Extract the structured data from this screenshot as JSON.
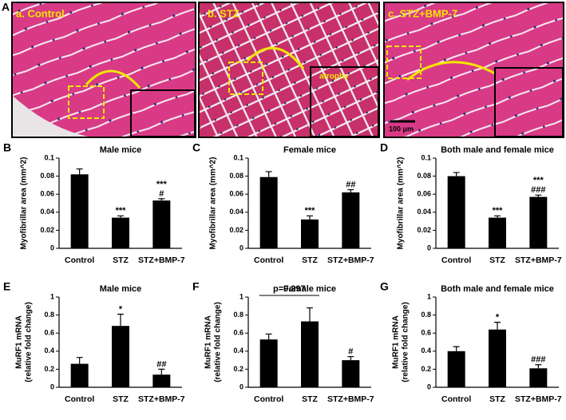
{
  "panels": {
    "figure_letter": "A",
    "image_labels": [
      "a. Control",
      "b. STZ",
      "c. STZ+BMP-7"
    ],
    "atrophy_label": "atrophy",
    "scale_bar": "100 μm"
  },
  "chart_data": [
    {
      "type": "bar",
      "letter": "B",
      "title": "Male mice",
      "ylabel": [
        "Myofibrillar area (mm^2)"
      ],
      "categories": [
        "Control",
        "STZ",
        "STZ+BMP-7"
      ],
      "values": [
        0.082,
        0.034,
        0.053
      ],
      "errors": [
        0.006,
        0.002,
        0.002
      ],
      "annotations": [
        [],
        [
          "***"
        ],
        [
          "***",
          "#"
        ]
      ],
      "color": "#000000",
      "ylim": [
        0,
        0.1
      ],
      "yticks": [
        0,
        0.02,
        0.04,
        0.06,
        0.08,
        0.1
      ]
    },
    {
      "type": "bar",
      "letter": "C",
      "title": "Female mice",
      "ylabel": [
        "Myofibrillar area (mm^2)"
      ],
      "categories": [
        "Control",
        "STZ",
        "STZ+BMP-7"
      ],
      "values": [
        0.079,
        0.032,
        0.062
      ],
      "errors": [
        0.006,
        0.004,
        0.003
      ],
      "annotations": [
        [],
        [
          "***"
        ],
        [
          "##"
        ]
      ],
      "color": "#000000",
      "ylim": [
        0,
        0.1
      ],
      "yticks": [
        0,
        0.02,
        0.04,
        0.06,
        0.08,
        0.1
      ]
    },
    {
      "type": "bar",
      "letter": "D",
      "title": "Both male and female mice",
      "ylabel": [
        "Myofibrillar area (mm^2)"
      ],
      "categories": [
        "Control",
        "STZ",
        "STZ+BMP-7"
      ],
      "values": [
        0.08,
        0.034,
        0.057
      ],
      "errors": [
        0.004,
        0.002,
        0.002
      ],
      "annotations": [
        [],
        [
          "***"
        ],
        [
          "***",
          "###"
        ]
      ],
      "color": "#000000",
      "ylim": [
        0,
        0.1
      ],
      "yticks": [
        0,
        0.02,
        0.04,
        0.06,
        0.08,
        0.1
      ]
    },
    {
      "type": "bar",
      "letter": "E",
      "title": "Male mice",
      "ylabel": [
        "MuRF1 mRNA",
        "(relative fold change)"
      ],
      "categories": [
        "Control",
        "STZ",
        "STZ+BMP-7"
      ],
      "values": [
        0.26,
        0.68,
        0.14
      ],
      "errors": [
        0.07,
        0.13,
        0.06
      ],
      "annotations": [
        [],
        [
          "*"
        ],
        [
          "##"
        ]
      ],
      "color": "#000000",
      "ylim": [
        0,
        1
      ],
      "yticks": [
        0,
        0.2,
        0.4,
        0.6,
        0.8,
        1
      ]
    },
    {
      "type": "bar",
      "letter": "F",
      "title": "Female mice",
      "ylabel": [
        "MuRF1 mRNA",
        "(relative fold change)"
      ],
      "categories": [
        "Control",
        "STZ",
        "STZ+BMP-7"
      ],
      "values": [
        0.53,
        0.73,
        0.3
      ],
      "errors": [
        0.06,
        0.15,
        0.04
      ],
      "annotations": [
        [],
        [],
        [
          "#"
        ]
      ],
      "bracket": "p=0.297",
      "color": "#000000",
      "ylim": [
        0,
        1
      ],
      "yticks": [
        0,
        0.2,
        0.4,
        0.6,
        0.8,
        1
      ]
    },
    {
      "type": "bar",
      "letter": "G",
      "title": "Both male and female mice",
      "ylabel": [
        "MuRF1 mRNA",
        "(relative fold change)"
      ],
      "categories": [
        "Control",
        "STZ",
        "STZ+BMP-7"
      ],
      "values": [
        0.4,
        0.64,
        0.21
      ],
      "errors": [
        0.05,
        0.08,
        0.04
      ],
      "annotations": [
        [],
        [
          "*"
        ],
        [
          "###"
        ]
      ],
      "color": "#000000",
      "ylim": [
        0,
        1
      ],
      "yticks": [
        0,
        0.2,
        0.4,
        0.6,
        0.8,
        1
      ]
    }
  ]
}
